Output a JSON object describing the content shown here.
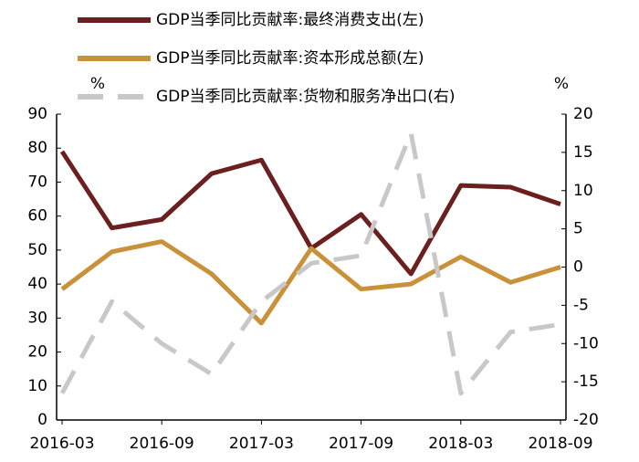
{
  "chart_data": {
    "type": "line",
    "categories": [
      "2016-03",
      null,
      "2016-09",
      null,
      "2017-03",
      null,
      "2017-09",
      null,
      "2018-03",
      null,
      "2018-09"
    ],
    "series": [
      {
        "name": "GDP当季同比贡献率:最终消费支出(左)",
        "color": "#6b1f1f",
        "dashed": false,
        "values": [
          79,
          56.5,
          59,
          72.5,
          76.5,
          50.5,
          60.5,
          43,
          69,
          68.5,
          63.5
        ]
      },
      {
        "name": "GDP当季同比贡献率:资本形成总额(左)",
        "color": "#c8913a",
        "dashed": false,
        "values": [
          38.5,
          49.5,
          52.5,
          43,
          28.5,
          50.5,
          38.5,
          40,
          48,
          40.5,
          45
        ]
      },
      {
        "name": "GDP当季同比贡献率:货物和服务净出口(右)",
        "color": "#c8c8c8",
        "dashed": true,
        "axis": "y2",
        "values": [
          -16.5,
          -4.5,
          -10,
          -14,
          -4.5,
          0.5,
          1.5,
          17.5,
          -16.5,
          -8.5,
          -7.5
        ]
      }
    ],
    "y_label": "%",
    "y2_label": "%",
    "ylim": [
      0,
      90
    ],
    "yticks": [
      0,
      10,
      20,
      30,
      40,
      50,
      60,
      70,
      80,
      90
    ],
    "y2lim": [
      -20,
      20
    ],
    "y2ticks": [
      -20,
      -15,
      -10,
      -5,
      0,
      5,
      10,
      15,
      20
    ],
    "grid": false
  }
}
